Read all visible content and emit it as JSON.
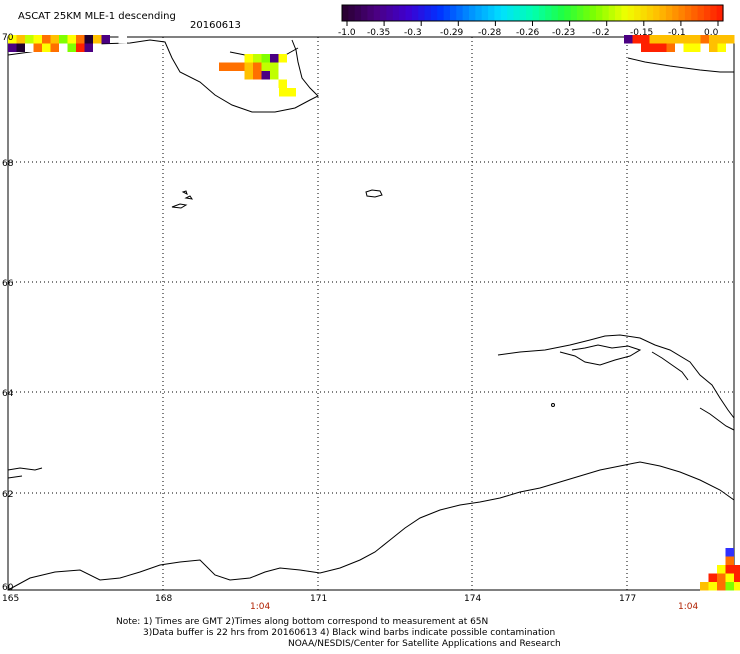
{
  "header": {
    "title": "ASCAT 25KM MLE-1 descending",
    "date": "20160613"
  },
  "colorbar": {
    "colors": [
      "#2a0033",
      "#4b0082",
      "#3f00d0",
      "#0030ff",
      "#0090ff",
      "#00e0ff",
      "#00ffb0",
      "#20ff40",
      "#80ff00",
      "#f0ff00",
      "#ffc000",
      "#ff7000",
      "#ff2000"
    ],
    "labels": [
      "-1.0",
      "-0.35",
      "-0.3",
      "-0.29",
      "-0.28",
      "-0.26",
      "-0.23",
      "-0.2",
      "-0.15",
      "-0.1",
      "0.0"
    ]
  },
  "map": {
    "lon_range": [
      165,
      179
    ],
    "lat_range": [
      60,
      70
    ],
    "lon_ticks": [
      "165",
      "168",
      "171",
      "174",
      "177"
    ],
    "lat_ticks": [
      "70",
      "68",
      "66",
      "64",
      "62",
      "60"
    ],
    "time_labels": [
      "1:04",
      "1:04"
    ],
    "wind_cells": [
      {
        "c": "#ffc000"
      },
      {
        "c": "#ffff00"
      },
      {
        "c": "#80ff00"
      },
      {
        "c": "#ffc000"
      },
      {
        "c": "#ff2000"
      },
      {
        "c": "#ffc000"
      },
      {
        "c": "#80ff00"
      },
      {
        "c": "#ffc000"
      },
      {
        "c": "#4b0082"
      },
      {
        "c": "#ffffff"
      }
    ]
  },
  "footer": {
    "line1": "Note: 1) Times are GMT 2)Times along bottom correspond to measurement at 65N",
    "line2": "3)Data buffer is 22 hrs from 20160613 4) Black wind barbs indicate possible contamination",
    "line3": "NOAA/NESDIS/Center for Satellite Applications and Research"
  }
}
